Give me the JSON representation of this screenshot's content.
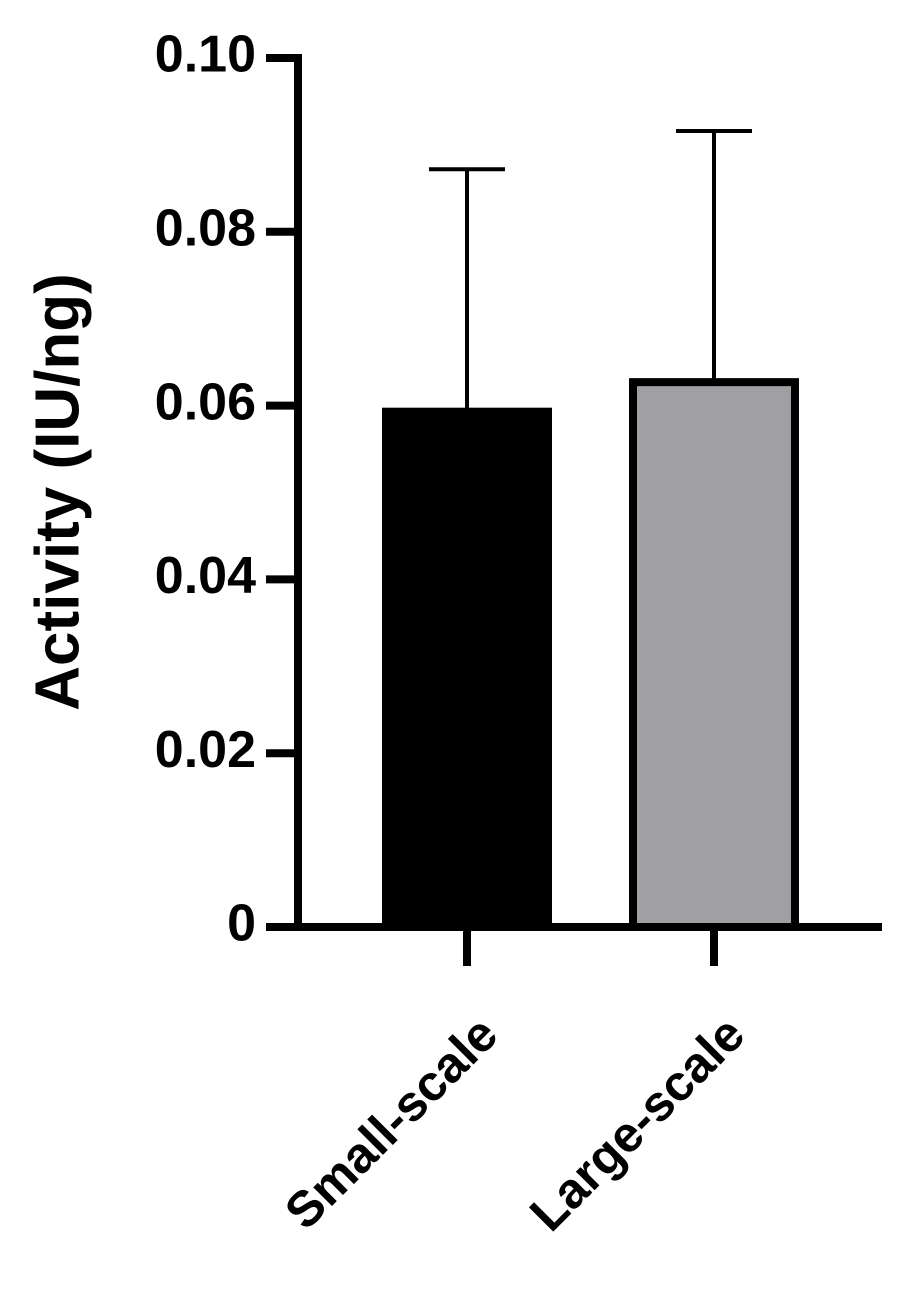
{
  "chart_data": {
    "type": "bar",
    "y_label": "Activity (IU/ng)",
    "categories": [
      "Small-scale",
      "Large-scale"
    ],
    "values": [
      0.0593,
      0.0627
    ],
    "errors": [
      0.0279,
      0.0289
    ],
    "colors": [
      "#000000",
      "#a0a0a4"
    ],
    "ylim": [
      0,
      0.1
    ],
    "yticks": [
      0,
      0.02,
      0.04,
      0.06,
      0.08,
      {
        "value": 0.1,
        "label": "0.10"
      }
    ]
  }
}
